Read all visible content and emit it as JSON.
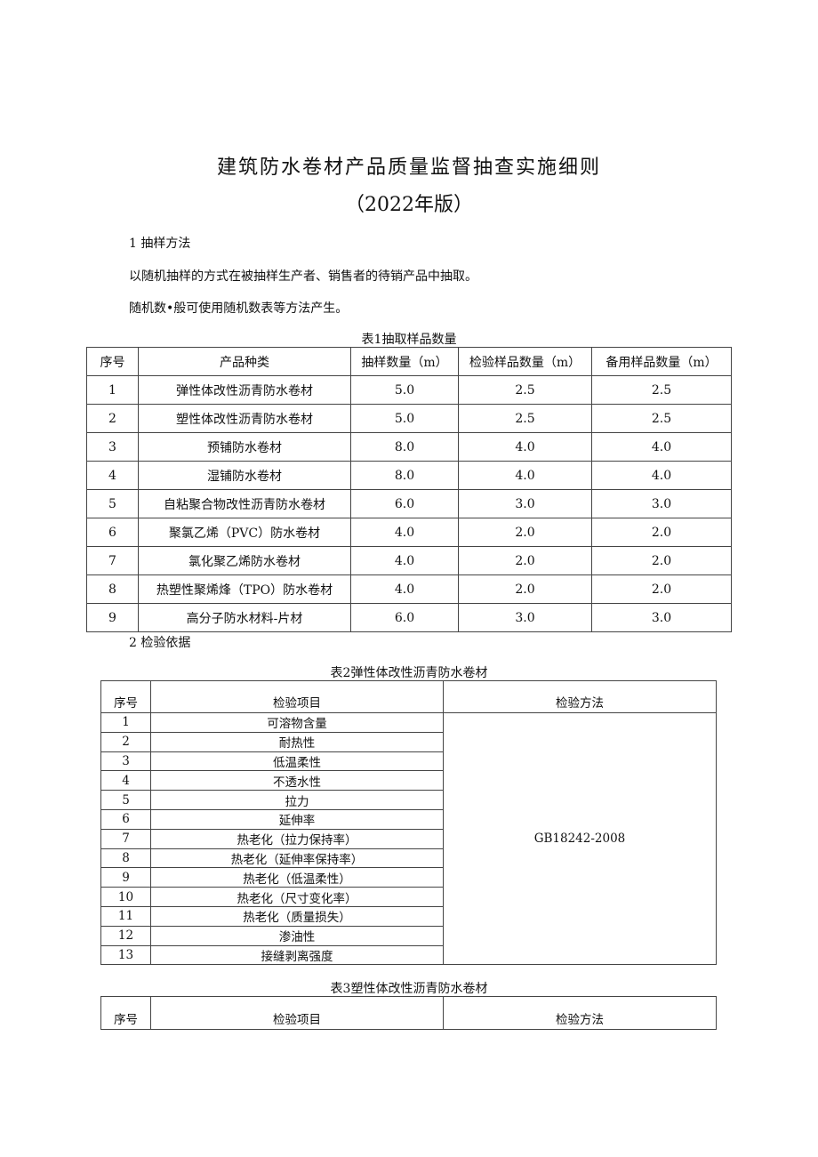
{
  "title": "建筑防水卷材产品质量监督抽查实施细则",
  "subtitle": "（2022年版）",
  "section1": {
    "heading": "1 抽样方法",
    "para1": "以随机抽样的方式在被抽样生产者、销售者的待销产品中抽取。",
    "para2": "随机数•般可使用随机数表等方法产生。"
  },
  "table1": {
    "caption": "表1抽取样品数量",
    "headers": [
      "序号",
      "产品种类",
      "抽样数量（m）",
      "检验样品数量（m）",
      "备用样品数量（m）"
    ],
    "rows": [
      [
        "1",
        "弹性体改性沥青防水卷材",
        "5.0",
        "2.5",
        "2.5"
      ],
      [
        "2",
        "塑性体改性沥青防水卷材",
        "5.0",
        "2.5",
        "2.5"
      ],
      [
        "3",
        "预铺防水卷材",
        "8.0",
        "4.0",
        "4.0"
      ],
      [
        "4",
        "湿铺防水卷材",
        "8.0",
        "4.0",
        "4.0"
      ],
      [
        "5",
        "自粘聚合物改性沥青防水卷材",
        "6.0",
        "3.0",
        "3.0"
      ],
      [
        "6",
        "聚氯乙烯（PVC）防水卷材",
        "4.0",
        "2.0",
        "2.0"
      ],
      [
        "7",
        "氯化聚乙烯防水卷材",
        "4.0",
        "2.0",
        "2.0"
      ],
      [
        "8",
        "热塑性聚烯烽（TPO）防水卷材",
        "4.0",
        "2.0",
        "2.0"
      ],
      [
        "9",
        "高分子防水材料-片材",
        "6.0",
        "3.0",
        "3.0"
      ]
    ]
  },
  "section2": {
    "heading": "2 检验依据"
  },
  "table2": {
    "caption": "表2弹性体改性沥青防水卷材",
    "headers": [
      "序号",
      "检验项目",
      "检验方法"
    ],
    "method": "GB18242-2008",
    "rows": [
      [
        "1",
        "可溶物含量"
      ],
      [
        "2",
        "耐热性"
      ],
      [
        "3",
        "低温柔性"
      ],
      [
        "4",
        "不透水性"
      ],
      [
        "5",
        "拉力"
      ],
      [
        "6",
        "延伸率"
      ],
      [
        "7",
        "热老化（拉力保持率）"
      ],
      [
        "8",
        "热老化（延伸率保持率）"
      ],
      [
        "9",
        "热老化（低温柔性）"
      ],
      [
        "10",
        "热老化（尺寸变化率）"
      ],
      [
        "11",
        "热老化（质量损失）"
      ],
      [
        "12",
        "渗油性"
      ],
      [
        "13",
        "接缝剥离强度"
      ]
    ]
  },
  "table3": {
    "caption": "表3塑性体改性沥青防水卷材",
    "headers": [
      "序号",
      "检验项目",
      "检验方法"
    ]
  }
}
